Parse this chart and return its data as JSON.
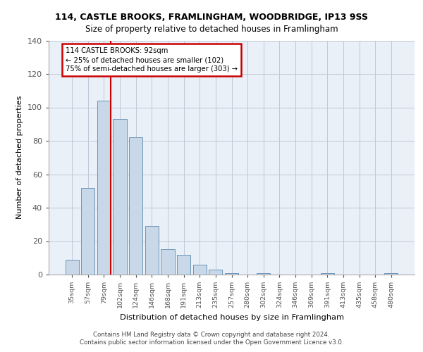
{
  "title1": "114, CASTLE BROOKS, FRAMLINGHAM, WOODBRIDGE, IP13 9SS",
  "title2": "Size of property relative to detached houses in Framlingham",
  "xlabel": "Distribution of detached houses by size in Framlingham",
  "ylabel": "Number of detached properties",
  "bar_labels": [
    "35sqm",
    "57sqm",
    "79sqm",
    "102sqm",
    "124sqm",
    "146sqm",
    "168sqm",
    "191sqm",
    "213sqm",
    "235sqm",
    "257sqm",
    "280sqm",
    "302sqm",
    "324sqm",
    "346sqm",
    "369sqm",
    "391sqm",
    "413sqm",
    "435sqm",
    "458sqm",
    "480sqm"
  ],
  "bar_values": [
    9,
    52,
    104,
    93,
    82,
    29,
    15,
    12,
    6,
    3,
    1,
    0,
    1,
    0,
    0,
    0,
    1,
    0,
    0,
    0,
    1
  ],
  "bar_color": "#c8d8e8",
  "bar_edge_color": "#5a8ab0",
  "vline_color": "#cc0000",
  "vline_x": 2.42,
  "annotation_text": "114 CASTLE BROOKS: 92sqm\n← 25% of detached houses are smaller (102)\n75% of semi-detached houses are larger (303) →",
  "annotation_box_color": "#cc0000",
  "ylim": [
    0,
    140
  ],
  "yticks": [
    0,
    20,
    40,
    60,
    80,
    100,
    120,
    140
  ],
  "grid_color": "#c0c8d8",
  "background_color": "#eaf0f8",
  "footer1": "Contains HM Land Registry data © Crown copyright and database right 2024.",
  "footer2": "Contains public sector information licensed under the Open Government Licence v3.0."
}
